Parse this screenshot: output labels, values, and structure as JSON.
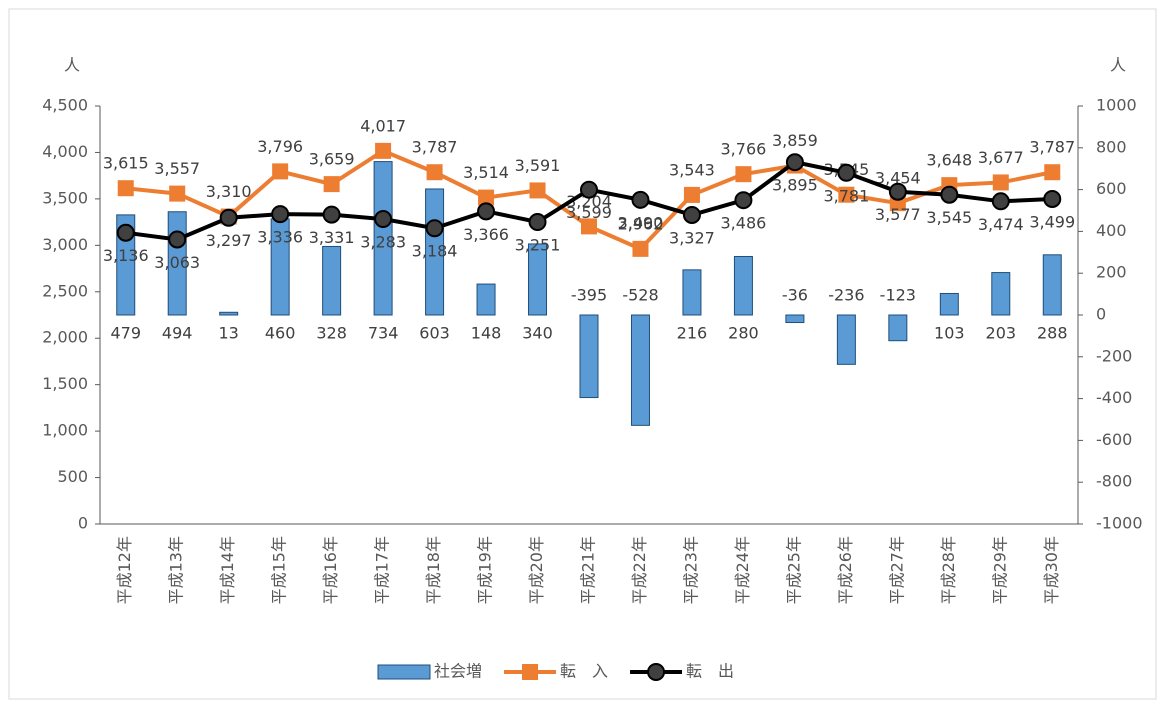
{
  "chart_data": {
    "type": "bar",
    "y_unit": "人",
    "y2_unit": "人",
    "categories": [
      "平成12年",
      "平成13年",
      "平成14年",
      "平成15年",
      "平成16年",
      "平成17年",
      "平成18年",
      "平成19年",
      "平成20年",
      "平成21年",
      "平成22年",
      "平成23年",
      "平成24年",
      "平成25年",
      "平成26年",
      "平成27年",
      "平成28年",
      "平成29年",
      "平成30年"
    ],
    "series": [
      {
        "name": "社会増",
        "type": "bar",
        "axis": "y2",
        "color": "#5b9bd5",
        "values": [
          479,
          494,
          13,
          460,
          328,
          734,
          603,
          148,
          340,
          -395,
          -528,
          216,
          280,
          -36,
          -236,
          -123,
          103,
          203,
          288
        ]
      },
      {
        "name": "転　入",
        "type": "line",
        "marker": "square",
        "color": "#ed7d31",
        "values": [
          3615,
          3557,
          3310,
          3796,
          3659,
          4017,
          3787,
          3514,
          3591,
          3204,
          2962,
          3543,
          3766,
          3859,
          3545,
          3454,
          3648,
          3677,
          3787
        ],
        "value_labels": [
          "3,615",
          "3,557",
          "3,310",
          "3,796",
          "3,659",
          "4,017",
          "3,787",
          "3,514",
          "3,591",
          "3,204",
          "2,962",
          "3,543",
          "3,766",
          "3,859",
          "3,545",
          "3,454",
          "3,648",
          "3,677",
          "3,787"
        ]
      },
      {
        "name": "転　出",
        "type": "line",
        "marker": "circle",
        "color": "#000000",
        "values": [
          3136,
          3063,
          3297,
          3336,
          3331,
          3283,
          3184,
          3366,
          3251,
          3599,
          3490,
          3327,
          3486,
          3895,
          3781,
          3577,
          3545,
          3474,
          3499
        ],
        "value_labels": [
          "3,136",
          "3,063",
          "3,297",
          "3,336",
          "3,331",
          "3,283",
          "3,184",
          "3,366",
          "3,251",
          "3,599",
          "3,490",
          "3,327",
          "3,486",
          "3,895",
          "3,781",
          "3,577",
          "3,545",
          "3,474",
          "3,499"
        ]
      }
    ],
    "ylim": [
      0,
      4500
    ],
    "yticks": [
      0,
      500,
      {
        "value": 1000,
        "label": "1,000"
      },
      {
        "value": 1500,
        "label": "1,500"
      },
      {
        "value": 2000,
        "label": "2,000"
      },
      {
        "value": 2500,
        "label": "2,500"
      },
      {
        "value": 3000,
        "label": "3,000"
      },
      {
        "value": 3500,
        "label": "3,500"
      },
      {
        "value": 4000,
        "label": "4,000"
      },
      {
        "value": 4500,
        "label": "4,500"
      }
    ],
    "y2lim": [
      -1000,
      1000
    ],
    "y2ticks": [
      -1000,
      -800,
      -600,
      -400,
      -200,
      0,
      200,
      400,
      600,
      800,
      1000
    ],
    "legend": "bottom"
  }
}
